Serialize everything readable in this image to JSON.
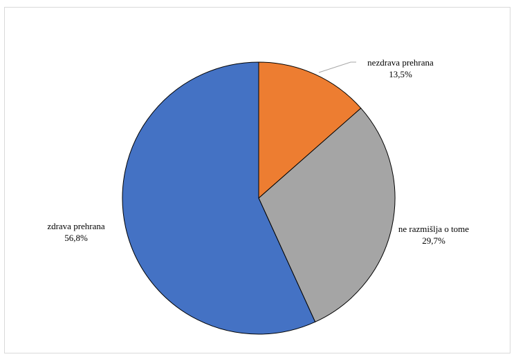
{
  "chart_data": {
    "type": "pie",
    "slices": [
      {
        "label": "nezdrava prehrana",
        "value": 13.5,
        "value_label": "13,5%",
        "color": "#ed7d31"
      },
      {
        "label": "ne razmišlja o tome",
        "value": 29.7,
        "value_label": "29,7%",
        "color": "#a5a5a5"
      },
      {
        "label": "zdrava prehrana",
        "value": 56.8,
        "value_label": "56,8%",
        "color": "#4472c4"
      }
    ],
    "start": "12 o'clock",
    "direction": "clockwise",
    "legend": "none",
    "title": ""
  }
}
